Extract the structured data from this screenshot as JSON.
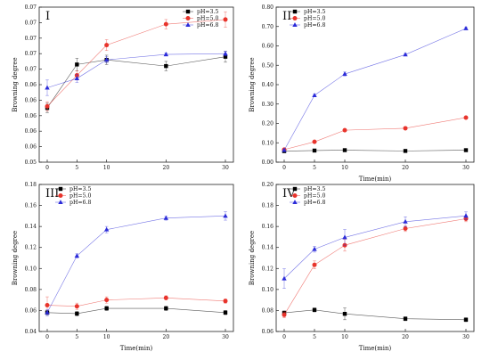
{
  "chart_data": [
    {
      "type": "line",
      "panel_label": "I",
      "xlabel": "",
      "ylabel": "Browning degree",
      "xticks": [
        0,
        5,
        10,
        20,
        30
      ],
      "yticks": [
        "0.05",
        "0.06",
        "0.06",
        "0.06",
        "0.06",
        "0.06",
        "0.07",
        "0.07",
        "0.07",
        "0.07",
        "0.07"
      ],
      "ylim": [
        0.05,
        0.07
      ],
      "grid": false,
      "legend_position": "top-right",
      "x": [
        0,
        5,
        10,
        20,
        30
      ],
      "series": [
        {
          "name": "pH=3.5",
          "color": "#000000",
          "marker": "square",
          "values": [
            0.057,
            0.0626,
            0.0632,
            0.0624,
            0.0636
          ],
          "errors": [
            0.0006,
            0.0008,
            0.0006,
            0.0006,
            0.0007
          ]
        },
        {
          "name": "pH=5.0",
          "color": "#e8342c",
          "marker": "circle",
          "values": [
            0.0572,
            0.0612,
            0.0651,
            0.0678,
            0.0684
          ],
          "errors": [
            0.0006,
            0.0006,
            0.0007,
            0.0006,
            0.001
          ]
        },
        {
          "name": "pH=6.8",
          "color": "#2b2bd9",
          "marker": "triangle",
          "values": [
            0.0596,
            0.0608,
            0.0632,
            0.0639,
            0.064
          ],
          "errors": [
            0.001,
            0.0005,
            0.0004,
            0.0002,
            0.0003
          ]
        }
      ]
    },
    {
      "type": "line",
      "panel_label": "II",
      "xlabel": "Time(min)",
      "ylabel": "Browning degree",
      "xticks": [
        0,
        5,
        10,
        20,
        30
      ],
      "yticks": [
        "0.00",
        "0.10",
        "0.20",
        "0.30",
        "0.40",
        "0.50",
        "0.60",
        "0.70",
        "0.80"
      ],
      "ylim": [
        0,
        0.8
      ],
      "grid": false,
      "legend_position": "top-left",
      "x": [
        0,
        5,
        10,
        20,
        30
      ],
      "series": [
        {
          "name": "pH=3.5",
          "color": "#000000",
          "marker": "square",
          "values": [
            0.057,
            0.06,
            0.062,
            0.058,
            0.062
          ],
          "errors": [
            0.003,
            0.003,
            0.003,
            0.003,
            0.003
          ]
        },
        {
          "name": "pH=5.0",
          "color": "#e8342c",
          "marker": "circle",
          "values": [
            0.065,
            0.105,
            0.165,
            0.175,
            0.23
          ],
          "errors": [
            0.004,
            0.004,
            0.004,
            0.004,
            0.004
          ]
        },
        {
          "name": "pH=6.8",
          "color": "#2b2bd9",
          "marker": "triangle",
          "values": [
            0.062,
            0.345,
            0.455,
            0.555,
            0.69
          ],
          "errors": [
            0.004,
            0.005,
            0.01,
            0.006,
            0.006
          ]
        }
      ]
    },
    {
      "type": "line",
      "panel_label": "III",
      "xlabel": "Time(min)",
      "ylabel": "Browning degree",
      "xticks": [
        0,
        5,
        10,
        20,
        30
      ],
      "yticks": [
        "0.04",
        "0.06",
        "0.08",
        "0.10",
        "0.12",
        "0.14",
        "0.16",
        "0.18"
      ],
      "ylim": [
        0.04,
        0.18
      ],
      "grid": false,
      "legend_position": "top-left",
      "x": [
        0,
        5,
        10,
        20,
        30
      ],
      "series": [
        {
          "name": "pH=3.5",
          "color": "#000000",
          "marker": "square",
          "values": [
            0.058,
            0.057,
            0.062,
            0.062,
            0.058
          ],
          "errors": [
            0.002,
            0.002,
            0.002,
            0.002,
            0.002
          ]
        },
        {
          "name": "pH=5.0",
          "color": "#e8342c",
          "marker": "circle",
          "values": [
            0.065,
            0.064,
            0.07,
            0.072,
            0.069
          ],
          "errors": [
            0.008,
            0.003,
            0.003,
            0.002,
            0.002
          ]
        },
        {
          "name": "pH=6.8",
          "color": "#2b2bd9",
          "marker": "triangle",
          "values": [
            0.058,
            0.112,
            0.137,
            0.148,
            0.15
          ],
          "errors": [
            0.003,
            0.002,
            0.003,
            0.002,
            0.004
          ]
        }
      ]
    },
    {
      "type": "line",
      "panel_label": "IV",
      "xlabel": "Time(min)",
      "ylabel": "Browning degree",
      "xticks": [
        0,
        5,
        10,
        20,
        30
      ],
      "yticks": [
        "0.06",
        "0.08",
        "0.10",
        "0.12",
        "0.14",
        "0.16",
        "0.18",
        "0.20"
      ],
      "ylim": [
        0.05,
        0.2
      ],
      "grid": false,
      "legend_position": "top-left",
      "x": [
        0,
        5,
        10,
        20,
        30
      ],
      "series": [
        {
          "name": "pH=3.5",
          "color": "#000000",
          "marker": "square",
          "values": [
            0.069,
            0.072,
            0.068,
            0.063,
            0.062
          ],
          "errors": [
            0.002,
            0.002,
            0.006,
            0.002,
            0.002
          ]
        },
        {
          "name": "pH=5.0",
          "color": "#e8342c",
          "marker": "circle",
          "values": [
            0.067,
            0.118,
            0.138,
            0.155,
            0.165
          ],
          "errors": [
            0.003,
            0.004,
            0.006,
            0.003,
            0.003
          ]
        },
        {
          "name": "pH=6.8",
          "color": "#2b2bd9",
          "marker": "triangle",
          "values": [
            0.104,
            0.134,
            0.146,
            0.162,
            0.168
          ],
          "errors": [
            0.01,
            0.003,
            0.008,
            0.005,
            0.004
          ]
        }
      ]
    }
  ]
}
